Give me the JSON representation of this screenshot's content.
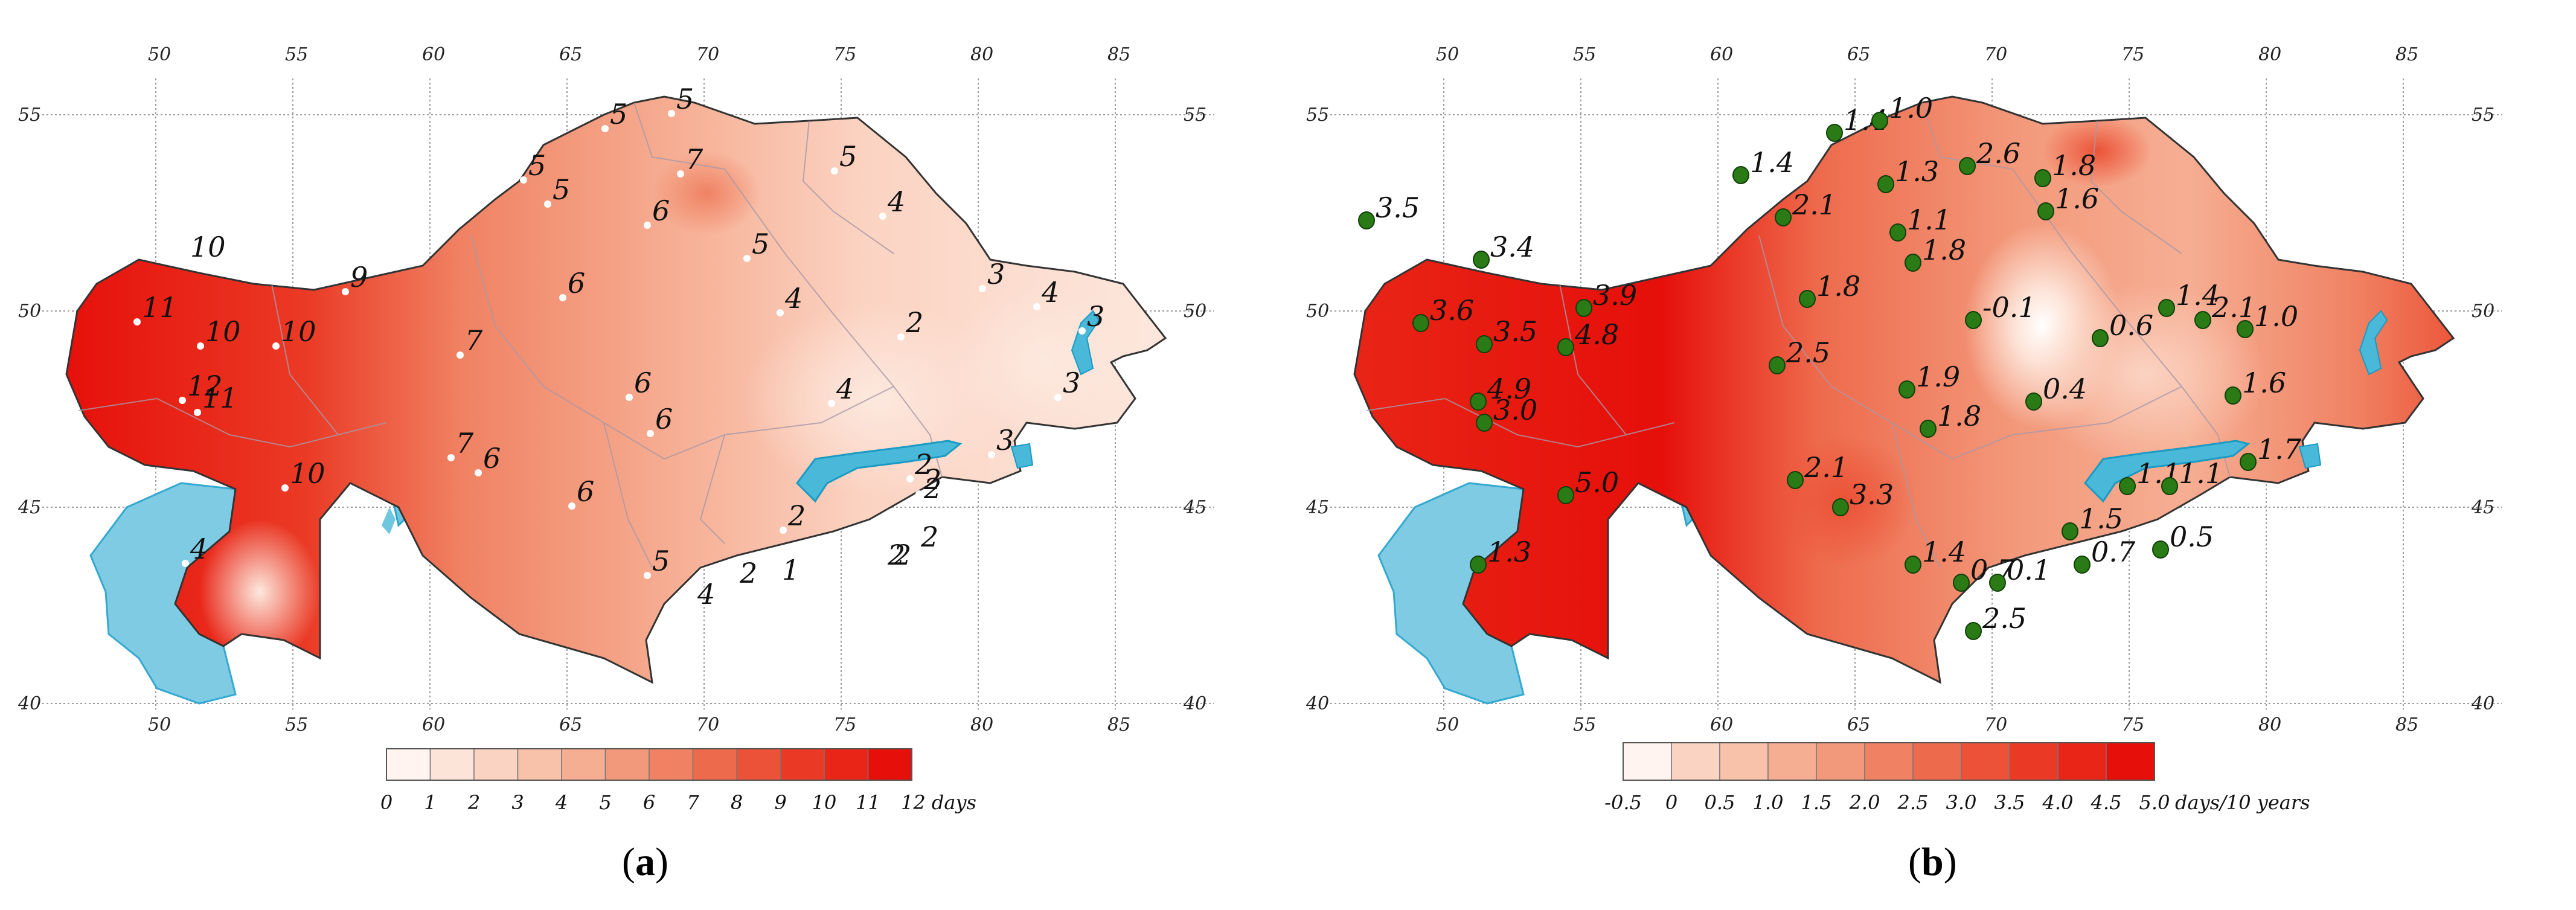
{
  "maps": [
    {
      "id": "a",
      "caption": "a",
      "lat_ticks": [
        "55",
        "50",
        "45",
        "40"
      ],
      "lon_ticks": [
        "50",
        "55",
        "60",
        "65",
        "70",
        "75",
        "80",
        "85"
      ],
      "station_labels": [
        "10",
        "11",
        "10",
        "10",
        "12",
        "11",
        "10",
        "4",
        "9",
        "7",
        "7",
        "6",
        "5",
        "5",
        "5",
        "5",
        "7",
        "6",
        "5",
        "5",
        "4",
        "6",
        "4",
        "6",
        "6",
        "6",
        "4",
        "2",
        "2",
        "2",
        "2",
        "2",
        "3",
        "3",
        "4",
        "3",
        "3",
        "2",
        "5",
        "4",
        "2",
        "1",
        "2",
        "2"
      ],
      "legend": {
        "ticks": [
          "0",
          "1",
          "2",
          "3",
          "4",
          "5",
          "6",
          "7",
          "8",
          "9",
          "10",
          "11",
          "12 days"
        ],
        "colors": [
          "#fff4ef",
          "#fde4d8",
          "#fbd3c2",
          "#f8c1aa",
          "#f6ae93",
          "#f3997b",
          "#f08263",
          "#ee6a4c",
          "#ec5237",
          "#ea3a25",
          "#e82516",
          "#e60f0a"
        ]
      }
    },
    {
      "id": "b",
      "caption": "b",
      "lat_ticks": [
        "55",
        "50",
        "45",
        "40"
      ],
      "lon_ticks": [
        "50",
        "55",
        "60",
        "65",
        "70",
        "75",
        "80",
        "85"
      ],
      "station_labels": [
        "3.4",
        "3.6",
        "3.5",
        "4.8",
        "3.9",
        "4.9",
        "3.0",
        "5.0",
        "1.3",
        "2.5",
        "2.1",
        "3.3",
        "1.4",
        "2.1",
        "1.8",
        "1.4",
        "1.0",
        "1.3",
        "1.1",
        "1.8",
        "2.6",
        "1.8",
        "1.6",
        "1.9",
        "1.8",
        "-0.1",
        "0.6",
        "1.4",
        "2.1",
        "1.0",
        "1.6",
        "0.4",
        "1.1",
        "1.1",
        "1.7",
        "1.5",
        "0.5",
        "1.4",
        "0.7",
        "0.1",
        "0.7",
        "2.5",
        "3.5"
      ],
      "legend": {
        "ticks": [
          "-0.5",
          "0",
          "0.5",
          "1.0",
          "1.5",
          "2.0",
          "2.5",
          "3.0",
          "3.5",
          "4.0",
          "4.5",
          "5.0"
        ],
        "unit": "days/10 years",
        "colors": [
          "#fff4ef",
          "#fbd3c2",
          "#f8c1aa",
          "#f6ae93",
          "#f3997b",
          "#f08263",
          "#ee6a4c",
          "#ec5237",
          "#ea3a25",
          "#e82516",
          "#e60f0a"
        ]
      }
    }
  ]
}
